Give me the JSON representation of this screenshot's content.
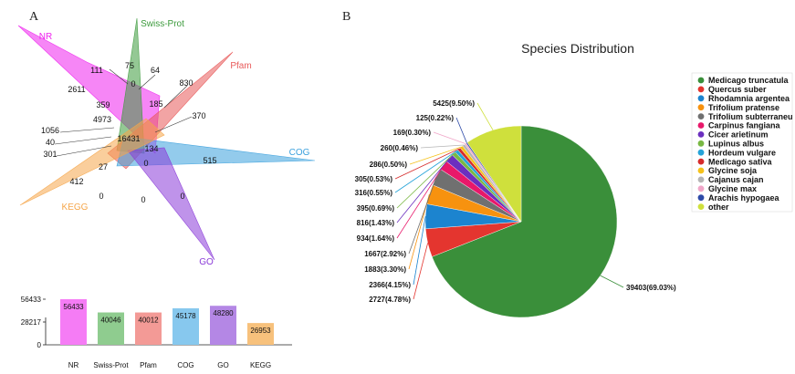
{
  "panel_a_label": "A",
  "panel_b_label": "B",
  "chart_data": [
    {
      "type": "venn",
      "sets": [
        {
          "name": "NR",
          "color": "#ee22ee"
        },
        {
          "name": "Swiss-Prot",
          "color": "#3c9a3c"
        },
        {
          "name": "Pfam",
          "color": "#e85a5a"
        },
        {
          "name": "COG",
          "color": "#3aa0dd"
        },
        {
          "name": "GO",
          "color": "#8a3ad8"
        },
        {
          "name": "KEGG",
          "color": "#f5a64a"
        }
      ],
      "region_values": [
        "75",
        "64",
        "111",
        "0",
        "2611",
        "359",
        "185",
        "830",
        "370",
        "4973",
        "16431",
        "1056",
        "40",
        "301",
        "134",
        "515",
        "27",
        "0",
        "412",
        "0",
        "0",
        "0"
      ]
    },
    {
      "type": "bar",
      "categories": [
        "NR",
        "Swiss-Prot",
        "Pfam",
        "COG",
        "GO",
        "KEGG"
      ],
      "values": [
        56433,
        40046,
        40012,
        45178,
        48280,
        26953
      ],
      "colors": [
        "#f57cf5",
        "#8fcc8f",
        "#f39a96",
        "#87c8ee",
        "#b487e5",
        "#f7c17c"
      ],
      "yticks": [
        0,
        28217,
        56433
      ],
      "ylim": [
        0,
        56433
      ]
    },
    {
      "type": "pie",
      "title": "Species Distribution",
      "slices": [
        {
          "name": "Medicago truncatula",
          "value": 39403,
          "label": "39403(69.03%)",
          "color": "#3a8f3a"
        },
        {
          "name": "Quercus suber",
          "value": 2727,
          "label": "2727(4.78%)",
          "color": "#e4352f"
        },
        {
          "name": "Rhodamnia argentea",
          "value": 2366,
          "label": "2366(4.15%)",
          "color": "#1c84cf"
        },
        {
          "name": "Trifolium pratense",
          "value": 1883,
          "label": "1883(3.30%)",
          "color": "#f7920f"
        },
        {
          "name": "Trifolium subterraneu",
          "value": 1667,
          "label": "1667(2.92%)",
          "color": "#707070"
        },
        {
          "name": "Carpinus fangiana",
          "value": 934,
          "label": "934(1.64%)",
          "color": "#e8186a"
        },
        {
          "name": "Cicer arietinum",
          "value": 816,
          "label": "816(1.43%)",
          "color": "#6b2fbf"
        },
        {
          "name": "Lupinus albus",
          "value": 395,
          "label": "395(0.69%)",
          "color": "#79b843"
        },
        {
          "name": "Hordeum vulgare",
          "value": 316,
          "label": "316(0.55%)",
          "color": "#25a3d8"
        },
        {
          "name": "Medicago sativa",
          "value": 305,
          "label": "305(0.53%)",
          "color": "#d62b2b"
        },
        {
          "name": "Glycine soja",
          "value": 286,
          "label": "286(0.50%)",
          "color": "#f5c21b"
        },
        {
          "name": "Cajanus cajan",
          "value": 260,
          "label": "260(0.46%)",
          "color": "#b5b5b5"
        },
        {
          "name": "Glycine max",
          "value": 169,
          "label": "169(0.30%)",
          "color": "#f0a6c8"
        },
        {
          "name": "Arachis hypogaea",
          "value": 125,
          "label": "125(0.22%)",
          "color": "#2d4aa8"
        },
        {
          "name": "other",
          "value": 5425,
          "label": "5425(9.50%)",
          "color": "#cfe03c"
        }
      ],
      "legend_placement": "right"
    }
  ]
}
